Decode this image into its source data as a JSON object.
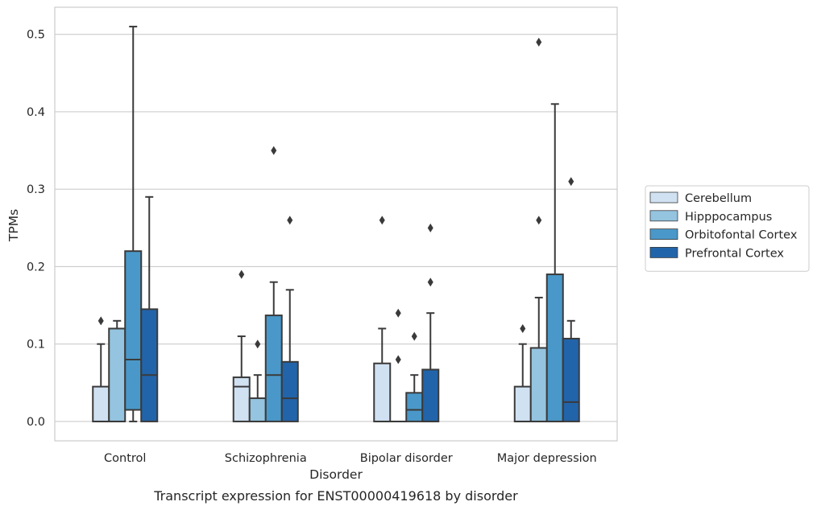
{
  "caption": "Transcript expression for ENST00000419618 by disorder",
  "colors": {
    "Cerebellum": "#d0e1f2",
    "Hipppocampus": "#94c4df",
    "Orbitofontal Cortex": "#4a98c9",
    "Prefrontal Cortex": "#2264aa",
    "edge": "#3a3a3a",
    "grid": "#cccccc",
    "frame": "#cccccc"
  },
  "chart_data": {
    "type": "box",
    "xlabel": "Disorder",
    "ylabel": "TPMs",
    "ylim": [
      -0.025,
      0.535
    ],
    "yticks": [
      0.0,
      0.1,
      0.2,
      0.3,
      0.4,
      0.5
    ],
    "ytick_labels": [
      "0.0",
      "0.1",
      "0.2",
      "0.3",
      "0.4",
      "0.5"
    ],
    "grid": true,
    "legend_position": "right",
    "categories": [
      "Control",
      "Schizophrenia",
      "Bipolar disorder",
      "Major depression"
    ],
    "series": [
      {
        "name": "Cerebellum",
        "boxes": [
          {
            "whislo": 0.0,
            "q1": 0.0,
            "med": 0.0,
            "q3": 0.045,
            "whishi": 0.1,
            "fliers": [
              0.13
            ]
          },
          {
            "whislo": 0.0,
            "q1": 0.0,
            "med": 0.045,
            "q3": 0.057,
            "whishi": 0.11,
            "fliers": [
              0.19
            ]
          },
          {
            "whislo": 0.0,
            "q1": 0.0,
            "med": 0.0,
            "q3": 0.075,
            "whishi": 0.12,
            "fliers": [
              0.26
            ]
          },
          {
            "whislo": 0.0,
            "q1": 0.0,
            "med": 0.0,
            "q3": 0.045,
            "whishi": 0.1,
            "fliers": [
              0.12
            ]
          }
        ]
      },
      {
        "name": "Hipppocampus",
        "boxes": [
          {
            "whislo": 0.0,
            "q1": 0.0,
            "med": 0.0,
            "q3": 0.12,
            "whishi": 0.13,
            "fliers": []
          },
          {
            "whislo": 0.0,
            "q1": 0.0,
            "med": 0.0,
            "q3": 0.03,
            "whishi": 0.06,
            "fliers": [
              0.1
            ]
          },
          {
            "whislo": 0.0,
            "q1": 0.0,
            "med": 0.0,
            "q3": 0.0,
            "whishi": 0.0,
            "fliers": [
              0.08,
              0.14
            ]
          },
          {
            "whislo": 0.0,
            "q1": 0.0,
            "med": 0.0,
            "q3": 0.095,
            "whishi": 0.16,
            "fliers": [
              0.26,
              0.49
            ]
          }
        ]
      },
      {
        "name": "Orbitofontal Cortex",
        "boxes": [
          {
            "whislo": 0.0,
            "q1": 0.015,
            "med": 0.08,
            "q3": 0.22,
            "whishi": 0.51,
            "fliers": []
          },
          {
            "whislo": 0.0,
            "q1": 0.0,
            "med": 0.06,
            "q3": 0.137,
            "whishi": 0.18,
            "fliers": [
              0.35
            ]
          },
          {
            "whislo": 0.0,
            "q1": 0.0,
            "med": 0.015,
            "q3": 0.037,
            "whishi": 0.06,
            "fliers": [
              0.11
            ]
          },
          {
            "whislo": 0.0,
            "q1": 0.0,
            "med": 0.0,
            "q3": 0.19,
            "whishi": 0.41,
            "fliers": []
          }
        ]
      },
      {
        "name": "Prefrontal Cortex",
        "boxes": [
          {
            "whislo": 0.0,
            "q1": 0.0,
            "med": 0.06,
            "q3": 0.145,
            "whishi": 0.29,
            "fliers": []
          },
          {
            "whislo": 0.0,
            "q1": 0.0,
            "med": 0.03,
            "q3": 0.077,
            "whishi": 0.17,
            "fliers": [
              0.26
            ]
          },
          {
            "whislo": 0.0,
            "q1": 0.0,
            "med": 0.0,
            "q3": 0.067,
            "whishi": 0.14,
            "fliers": [
              0.18,
              0.25
            ]
          },
          {
            "whislo": 0.0,
            "q1": 0.0,
            "med": 0.025,
            "q3": 0.107,
            "whishi": 0.13,
            "fliers": [
              0.31
            ]
          }
        ]
      }
    ]
  }
}
